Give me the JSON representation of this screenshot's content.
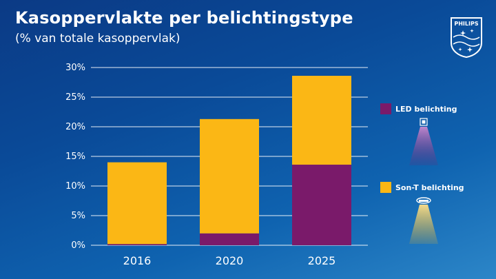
{
  "header": {
    "title": "Kasoppervlakte per belichtingstype",
    "subtitle": "(% van totale kasoppervlak)"
  },
  "logo": {
    "text": "PHILIPS"
  },
  "colors": {
    "led": "#7a1a6a",
    "sont": "#fbb715",
    "grid": "#ffffff",
    "axis_text": "#ffffff"
  },
  "chart_data": {
    "type": "bar",
    "stacked": true,
    "categories": [
      "2016",
      "2020",
      "2025"
    ],
    "series": [
      {
        "name": "LED belichting",
        "color": "#7a1a6a",
        "values": [
          0.2,
          2.0,
          13.6
        ]
      },
      {
        "name": "Son-T belichting",
        "color": "#fbb715",
        "values": [
          13.8,
          19.3,
          15.0
        ]
      }
    ],
    "title": "Kasoppervlakte per belichtingstype",
    "subtitle": "(% van totale kasoppervlak)",
    "ylim": [
      0,
      30
    ],
    "yticks": [
      "0%",
      "5%",
      "10%",
      "15%",
      "20%",
      "25%",
      "30%"
    ],
    "grid": true,
    "legend_position": "right"
  },
  "legend": {
    "items": [
      {
        "label": "LED belichting",
        "icon": "led-lamp-icon"
      },
      {
        "label": "Son-T belichting",
        "icon": "sont-lamp-icon"
      }
    ]
  }
}
